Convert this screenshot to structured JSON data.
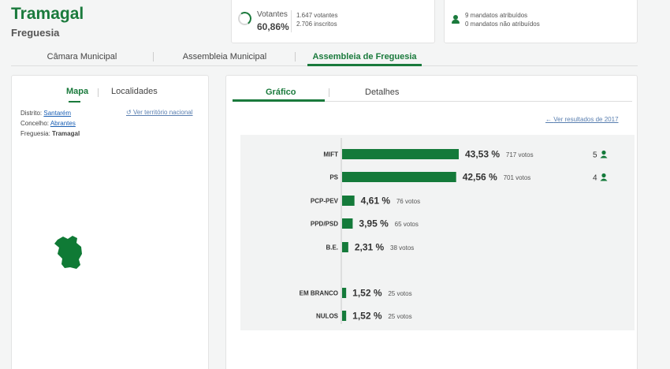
{
  "header": {
    "title": "Tramagal",
    "subtitle": "Freguesia"
  },
  "votantes": {
    "label": "Votantes",
    "percent": "60,86%",
    "votantes_line": "1.647 votantes",
    "inscritos_line": "2.706 inscritos"
  },
  "mandatos": {
    "atribuidos": "9 mandatos atribuídos",
    "nao_atribuidos": "0 mandatos não atribuídos"
  },
  "top_tabs": [
    {
      "label": "Câmara Municipal"
    },
    {
      "label": "Assembleia Municipal"
    },
    {
      "label": "Assembleia de Freguesia"
    }
  ],
  "map_card": {
    "tabs": [
      {
        "label": "Mapa"
      },
      {
        "label": "Localidades"
      }
    ],
    "distrito_label": "Distrito:",
    "distrito_value": "Santarém",
    "concelho_label": "Concelho:",
    "concelho_value": "Abrantes",
    "freguesia_label": "Freguesia:",
    "freguesia_value": "Tramagal",
    "ver_nacional": "Ver território nacional",
    "map_color": "#0f7a35"
  },
  "chart_card": {
    "tabs": [
      {
        "label": "Gráfico"
      },
      {
        "label": "Detalhes"
      }
    ],
    "ver_2017": "Ver resultados de 2017",
    "bar_color": "#147a3a"
  },
  "chart_data": {
    "type": "bar",
    "orientation": "horizontal",
    "categories": [
      "MIFT",
      "PS",
      "PCP-PEV",
      "PPD/PSD",
      "B.E.",
      "EM BRANCO",
      "NULOS"
    ],
    "percent_values": [
      43.53,
      42.56,
      4.61,
      3.95,
      2.31,
      1.52,
      1.52
    ],
    "percent_labels": [
      "43,53 %",
      "42,56 %",
      "4,61 %",
      "3,95 %",
      "2,31 %",
      "1,52 %",
      "1,52 %"
    ],
    "votes": [
      717,
      701,
      76,
      65,
      38,
      25,
      25
    ],
    "votes_labels": [
      "717 votos",
      "701 votos",
      "76 votos",
      "65 votos",
      "38 votos",
      "25 votos",
      "25 votos"
    ],
    "seats": [
      5,
      4,
      null,
      null,
      null,
      null,
      null
    ],
    "xlim": [
      0,
      100
    ],
    "grid": false,
    "legend": "none"
  }
}
